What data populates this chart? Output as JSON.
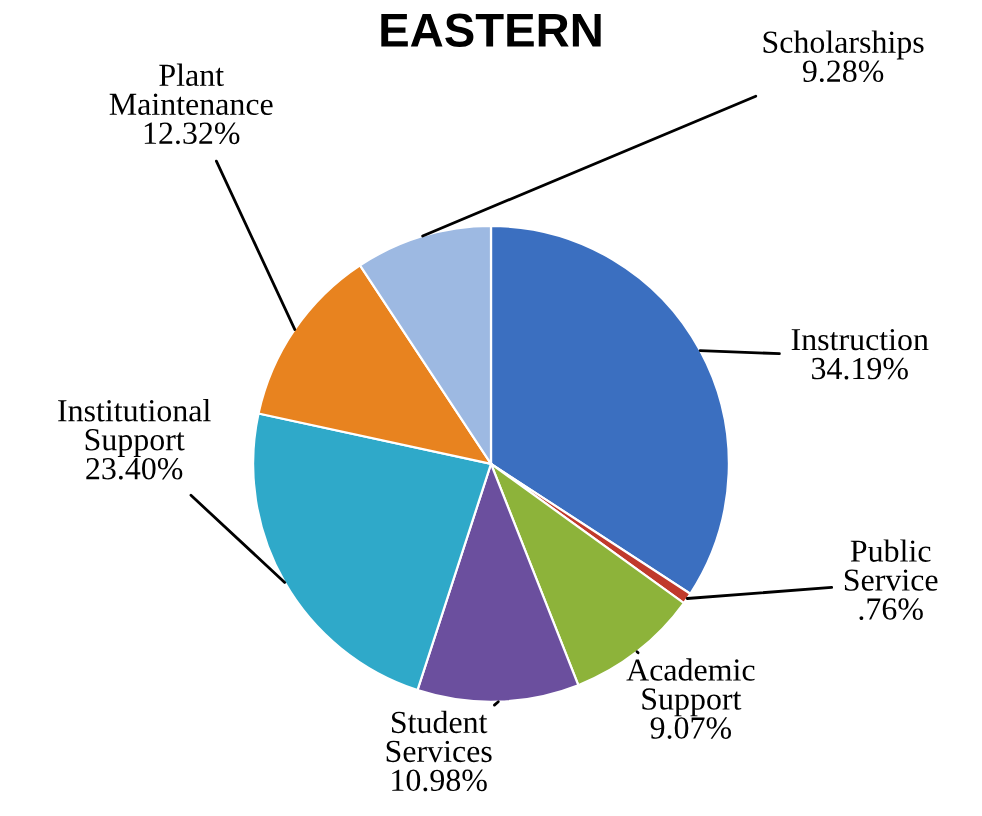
{
  "chart_data": {
    "type": "pie",
    "title": "EASTERN",
    "categories": [
      "Instruction",
      "Public\nService",
      "Academic\nSupport",
      "Student\nServices",
      "Institutional\nSupport",
      "Plant\nMaintenance",
      "Scholarships"
    ],
    "values": [
      34.19,
      0.76,
      9.07,
      10.98,
      23.4,
      12.32,
      9.28
    ],
    "value_labels": [
      "34.19%",
      ".76%",
      "9.07%",
      "10.98%",
      "23.40%",
      "12.32%",
      "9.28%"
    ],
    "colors": [
      "#3b6fc0",
      "#c0392b",
      "#8db33a",
      "#6b4f9e",
      "#2fa9c9",
      "#e8831f",
      "#9db9e2"
    ],
    "legend": false
  }
}
